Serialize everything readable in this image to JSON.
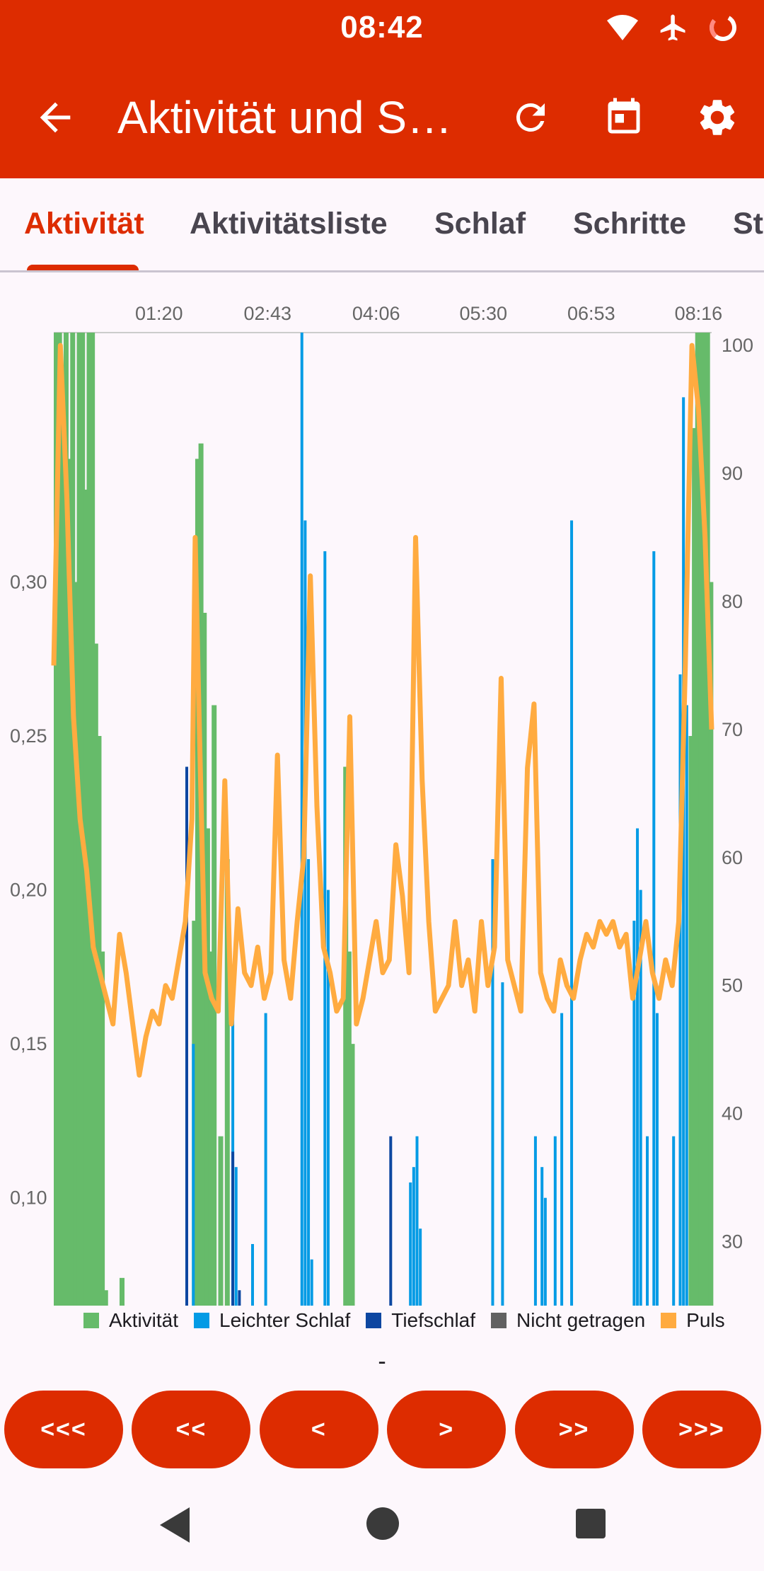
{
  "status_bar": {
    "time": "08:42"
  },
  "toolbar": {
    "title": "Aktivität und Schlaf",
    "icons": [
      "arrow-back-icon",
      "refresh-icon",
      "calendar-icon",
      "settings-icon"
    ]
  },
  "tabs": [
    {
      "label": "Aktivität",
      "active": true
    },
    {
      "label": "Aktivitätsliste"
    },
    {
      "label": "Schlaf"
    },
    {
      "label": "Schritte"
    },
    {
      "label": "St"
    }
  ],
  "chart_data": {
    "type": "bar+line",
    "x_tick_labels": [
      "01:20",
      "02:43",
      "04:06",
      "05:30",
      "06:53",
      "08:16"
    ],
    "y_left": {
      "ticks": [
        "0,30",
        "0,25",
        "0,20",
        "0,15",
        "0,10"
      ],
      "tick_values": [
        0.3,
        0.25,
        0.2,
        0.15,
        0.1
      ],
      "range": [
        0.065,
        0.381
      ]
    },
    "y_right": {
      "ticks": [
        "100",
        "90",
        "80",
        "70",
        "60",
        "50",
        "40",
        "30"
      ],
      "tick_values": [
        100,
        90,
        80,
        70,
        60,
        50,
        40,
        30
      ],
      "range": [
        25,
        101
      ]
    },
    "colors": {
      "Aktivität": "#66bb6a",
      "Leichter Schlaf": "#039be5",
      "Tiefschlaf": "#0d47a1",
      "Nicht getragen": "#616161",
      "Puls": "#ffab40"
    },
    "legend": [
      "Aktivität",
      "Leichter Schlaf",
      "Tiefschlaf",
      "Nicht getragen",
      "Puls"
    ],
    "activity_bars": [
      [
        0.0,
        0.381
      ],
      [
        0.005,
        0.381
      ],
      [
        0.01,
        0.36
      ],
      [
        0.015,
        0.381
      ],
      [
        0.02,
        0.34
      ],
      [
        0.025,
        0.381
      ],
      [
        0.03,
        0.3
      ],
      [
        0.035,
        0.381
      ],
      [
        0.04,
        0.381
      ],
      [
        0.045,
        0.33
      ],
      [
        0.05,
        0.381
      ],
      [
        0.055,
        0.381
      ],
      [
        0.06,
        0.28
      ],
      [
        0.065,
        0.25
      ],
      [
        0.07,
        0.18
      ],
      [
        0.075,
        0.07
      ],
      [
        0.1,
        0.074
      ],
      [
        0.21,
        0.19
      ],
      [
        0.215,
        0.34
      ],
      [
        0.22,
        0.345
      ],
      [
        0.225,
        0.29
      ],
      [
        0.23,
        0.22
      ],
      [
        0.235,
        0.18
      ],
      [
        0.24,
        0.26
      ],
      [
        0.25,
        0.12
      ],
      [
        0.26,
        0.21
      ],
      [
        0.44,
        0.24
      ],
      [
        0.445,
        0.18
      ],
      [
        0.45,
        0.15
      ],
      [
        0.965,
        0.25
      ],
      [
        0.97,
        0.35
      ],
      [
        0.975,
        0.381
      ],
      [
        0.98,
        0.381
      ],
      [
        0.985,
        0.381
      ],
      [
        0.99,
        0.381
      ],
      [
        0.995,
        0.3
      ]
    ],
    "light_sleep_bars": [
      [
        0.2,
        0.18
      ],
      [
        0.21,
        0.15
      ],
      [
        0.27,
        0.17
      ],
      [
        0.275,
        0.11
      ],
      [
        0.3,
        0.085
      ],
      [
        0.32,
        0.16
      ],
      [
        0.375,
        0.381
      ],
      [
        0.38,
        0.32
      ],
      [
        0.385,
        0.21
      ],
      [
        0.39,
        0.08
      ],
      [
        0.41,
        0.31
      ],
      [
        0.415,
        0.2
      ],
      [
        0.54,
        0.105
      ],
      [
        0.545,
        0.11
      ],
      [
        0.55,
        0.12
      ],
      [
        0.555,
        0.09
      ],
      [
        0.665,
        0.21
      ],
      [
        0.68,
        0.17
      ],
      [
        0.73,
        0.12
      ],
      [
        0.74,
        0.11
      ],
      [
        0.745,
        0.1
      ],
      [
        0.76,
        0.12
      ],
      [
        0.77,
        0.16
      ],
      [
        0.785,
        0.32
      ],
      [
        0.88,
        0.19
      ],
      [
        0.885,
        0.22
      ],
      [
        0.89,
        0.2
      ],
      [
        0.9,
        0.12
      ],
      [
        0.91,
        0.31
      ],
      [
        0.915,
        0.16
      ],
      [
        0.94,
        0.12
      ],
      [
        0.95,
        0.27
      ],
      [
        0.955,
        0.36
      ],
      [
        0.96,
        0.26
      ]
    ],
    "deep_sleep_bars": [
      [
        0.2,
        0.24
      ],
      [
        0.27,
        0.115
      ],
      [
        0.28,
        0.07
      ],
      [
        0.51,
        0.12
      ]
    ],
    "pulse": [
      [
        0.0,
        75
      ],
      [
        0.01,
        100
      ],
      [
        0.02,
        88
      ],
      [
        0.03,
        71
      ],
      [
        0.04,
        63
      ],
      [
        0.05,
        59
      ],
      [
        0.06,
        53
      ],
      [
        0.07,
        51
      ],
      [
        0.08,
        49
      ],
      [
        0.09,
        47
      ],
      [
        0.1,
        54
      ],
      [
        0.11,
        51
      ],
      [
        0.12,
        47
      ],
      [
        0.13,
        43
      ],
      [
        0.14,
        46
      ],
      [
        0.15,
        48
      ],
      [
        0.16,
        47
      ],
      [
        0.17,
        50
      ],
      [
        0.18,
        49
      ],
      [
        0.19,
        52
      ],
      [
        0.2,
        55
      ],
      [
        0.21,
        63
      ],
      [
        0.215,
        85
      ],
      [
        0.22,
        73
      ],
      [
        0.23,
        51
      ],
      [
        0.24,
        49
      ],
      [
        0.25,
        48
      ],
      [
        0.26,
        66
      ],
      [
        0.27,
        47
      ],
      [
        0.28,
        56
      ],
      [
        0.29,
        51
      ],
      [
        0.3,
        50
      ],
      [
        0.31,
        53
      ],
      [
        0.32,
        49
      ],
      [
        0.33,
        51
      ],
      [
        0.34,
        68
      ],
      [
        0.35,
        52
      ],
      [
        0.36,
        49
      ],
      [
        0.37,
        55
      ],
      [
        0.38,
        60
      ],
      [
        0.39,
        82
      ],
      [
        0.4,
        64
      ],
      [
        0.41,
        53
      ],
      [
        0.42,
        51
      ],
      [
        0.43,
        48
      ],
      [
        0.44,
        49
      ],
      [
        0.45,
        71
      ],
      [
        0.46,
        47
      ],
      [
        0.47,
        49
      ],
      [
        0.48,
        52
      ],
      [
        0.49,
        55
      ],
      [
        0.5,
        51
      ],
      [
        0.51,
        52
      ],
      [
        0.52,
        61
      ],
      [
        0.53,
        57
      ],
      [
        0.54,
        51
      ],
      [
        0.55,
        85
      ],
      [
        0.56,
        66
      ],
      [
        0.57,
        55
      ],
      [
        0.58,
        48
      ],
      [
        0.59,
        49
      ],
      [
        0.6,
        50
      ],
      [
        0.61,
        55
      ],
      [
        0.62,
        50
      ],
      [
        0.63,
        52
      ],
      [
        0.64,
        48
      ],
      [
        0.65,
        55
      ],
      [
        0.66,
        50
      ],
      [
        0.67,
        53
      ],
      [
        0.68,
        74
      ],
      [
        0.69,
        52
      ],
      [
        0.7,
        50
      ],
      [
        0.71,
        48
      ],
      [
        0.72,
        67
      ],
      [
        0.73,
        72
      ],
      [
        0.74,
        51
      ],
      [
        0.75,
        49
      ],
      [
        0.76,
        48
      ],
      [
        0.77,
        52
      ],
      [
        0.78,
        50
      ],
      [
        0.79,
        49
      ],
      [
        0.8,
        52
      ],
      [
        0.81,
        54
      ],
      [
        0.82,
        53
      ],
      [
        0.83,
        55
      ],
      [
        0.84,
        54
      ],
      [
        0.85,
        55
      ],
      [
        0.86,
        53
      ],
      [
        0.87,
        54
      ],
      [
        0.88,
        49
      ],
      [
        0.89,
        52
      ],
      [
        0.9,
        55
      ],
      [
        0.91,
        51
      ],
      [
        0.92,
        49
      ],
      [
        0.93,
        52
      ],
      [
        0.94,
        50
      ],
      [
        0.95,
        55
      ],
      [
        0.96,
        75
      ],
      [
        0.97,
        100
      ],
      [
        0.98,
        95
      ],
      [
        0.99,
        85
      ],
      [
        1.0,
        70
      ]
    ]
  },
  "dash_label": "-",
  "nav_buttons": [
    "<<<",
    "<<",
    "<",
    ">",
    ">>",
    ">>>"
  ],
  "system_nav": [
    "back-triangle-icon",
    "home-circle-icon",
    "recents-square-icon"
  ]
}
